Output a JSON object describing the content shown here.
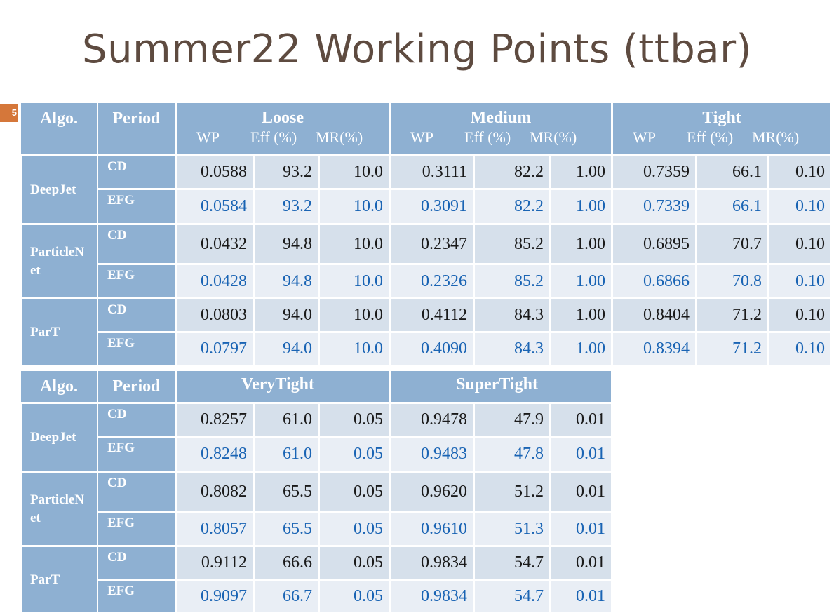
{
  "title": "Summer22 Working Points (ttbar)",
  "slide_number": "5",
  "colors": {
    "header_bg": "#8eb0d2",
    "cd_row_bg": "#d6e0eb",
    "efg_row_bg": "#e9eef5",
    "efg_text": "#1a64b4",
    "title": "#5e4b40"
  },
  "table1": {
    "algo_header": "Algo.",
    "period_header": "Period",
    "groups": [
      {
        "name": "Loose",
        "sub": [
          "WP",
          "Eff (%)",
          "MR(%)"
        ]
      },
      {
        "name": "Medium",
        "sub": [
          "WP",
          "Eff (%)",
          "MR(%)"
        ]
      },
      {
        "name": "Tight",
        "sub": [
          "WP",
          "Eff (%)",
          "MR(%)"
        ]
      }
    ],
    "algos": [
      {
        "name": "DeepJet",
        "rows": [
          {
            "period": "CD",
            "values": [
              "0.0588",
              "93.2",
              "10.0",
              "0.3111",
              "82.2",
              "1.00",
              "0.7359",
              "66.1",
              "0.10"
            ]
          },
          {
            "period": "EFG",
            "values": [
              "0.0584",
              "93.2",
              "10.0",
              "0.3091",
              "82.2",
              "1.00",
              "0.7339",
              "66.1",
              "0.10"
            ]
          }
        ]
      },
      {
        "name": "ParticleN\net",
        "rows": [
          {
            "period": "CD",
            "values": [
              "0.0432",
              "94.8",
              "10.0",
              "0.2347",
              "85.2",
              "1.00",
              "0.6895",
              "70.7",
              "0.10"
            ]
          },
          {
            "period": "EFG",
            "values": [
              "0.0428",
              "94.8",
              "10.0",
              "0.2326",
              "85.2",
              "1.00",
              "0.6866",
              "70.8",
              "0.10"
            ]
          }
        ]
      },
      {
        "name": "ParT",
        "rows": [
          {
            "period": "CD",
            "values": [
              "0.0803",
              "94.0",
              "10.0",
              "0.4112",
              "84.3",
              "1.00",
              "0.8404",
              "71.2",
              "0.10"
            ]
          },
          {
            "period": "EFG",
            "values": [
              "0.0797",
              "94.0",
              "10.0",
              "0.4090",
              "84.3",
              "1.00",
              "0.8394",
              "71.2",
              "0.10"
            ]
          }
        ]
      }
    ]
  },
  "table2": {
    "algo_header": "Algo.",
    "period_header": "Period",
    "groups": [
      {
        "name": "VeryTight"
      },
      {
        "name": "SuperTight"
      }
    ],
    "algos": [
      {
        "name": "DeepJet",
        "rows": [
          {
            "period": "CD",
            "values": [
              "0.8257",
              "61.0",
              "0.05",
              "0.9478",
              "47.9",
              "0.01"
            ]
          },
          {
            "period": "EFG",
            "values": [
              "0.8248",
              "61.0",
              "0.05",
              "0.9483",
              "47.8",
              "0.01"
            ]
          }
        ]
      },
      {
        "name": "ParticleN\net",
        "rows": [
          {
            "period": "CD",
            "values": [
              "0.8082",
              "65.5",
              "0.05",
              "0.9620",
              "51.2",
              "0.01"
            ]
          },
          {
            "period": "EFG",
            "values": [
              "0.8057",
              "65.5",
              "0.05",
              "0.9610",
              "51.3",
              "0.01"
            ]
          }
        ]
      },
      {
        "name": "ParT",
        "rows": [
          {
            "period": "CD",
            "values": [
              "0.9112",
              "66.6",
              "0.05",
              "0.9834",
              "54.7",
              "0.01"
            ]
          },
          {
            "period": "EFG",
            "values": [
              "0.9097",
              "66.7",
              "0.05",
              "0.9834",
              "54.7",
              "0.01"
            ]
          }
        ]
      }
    ]
  }
}
